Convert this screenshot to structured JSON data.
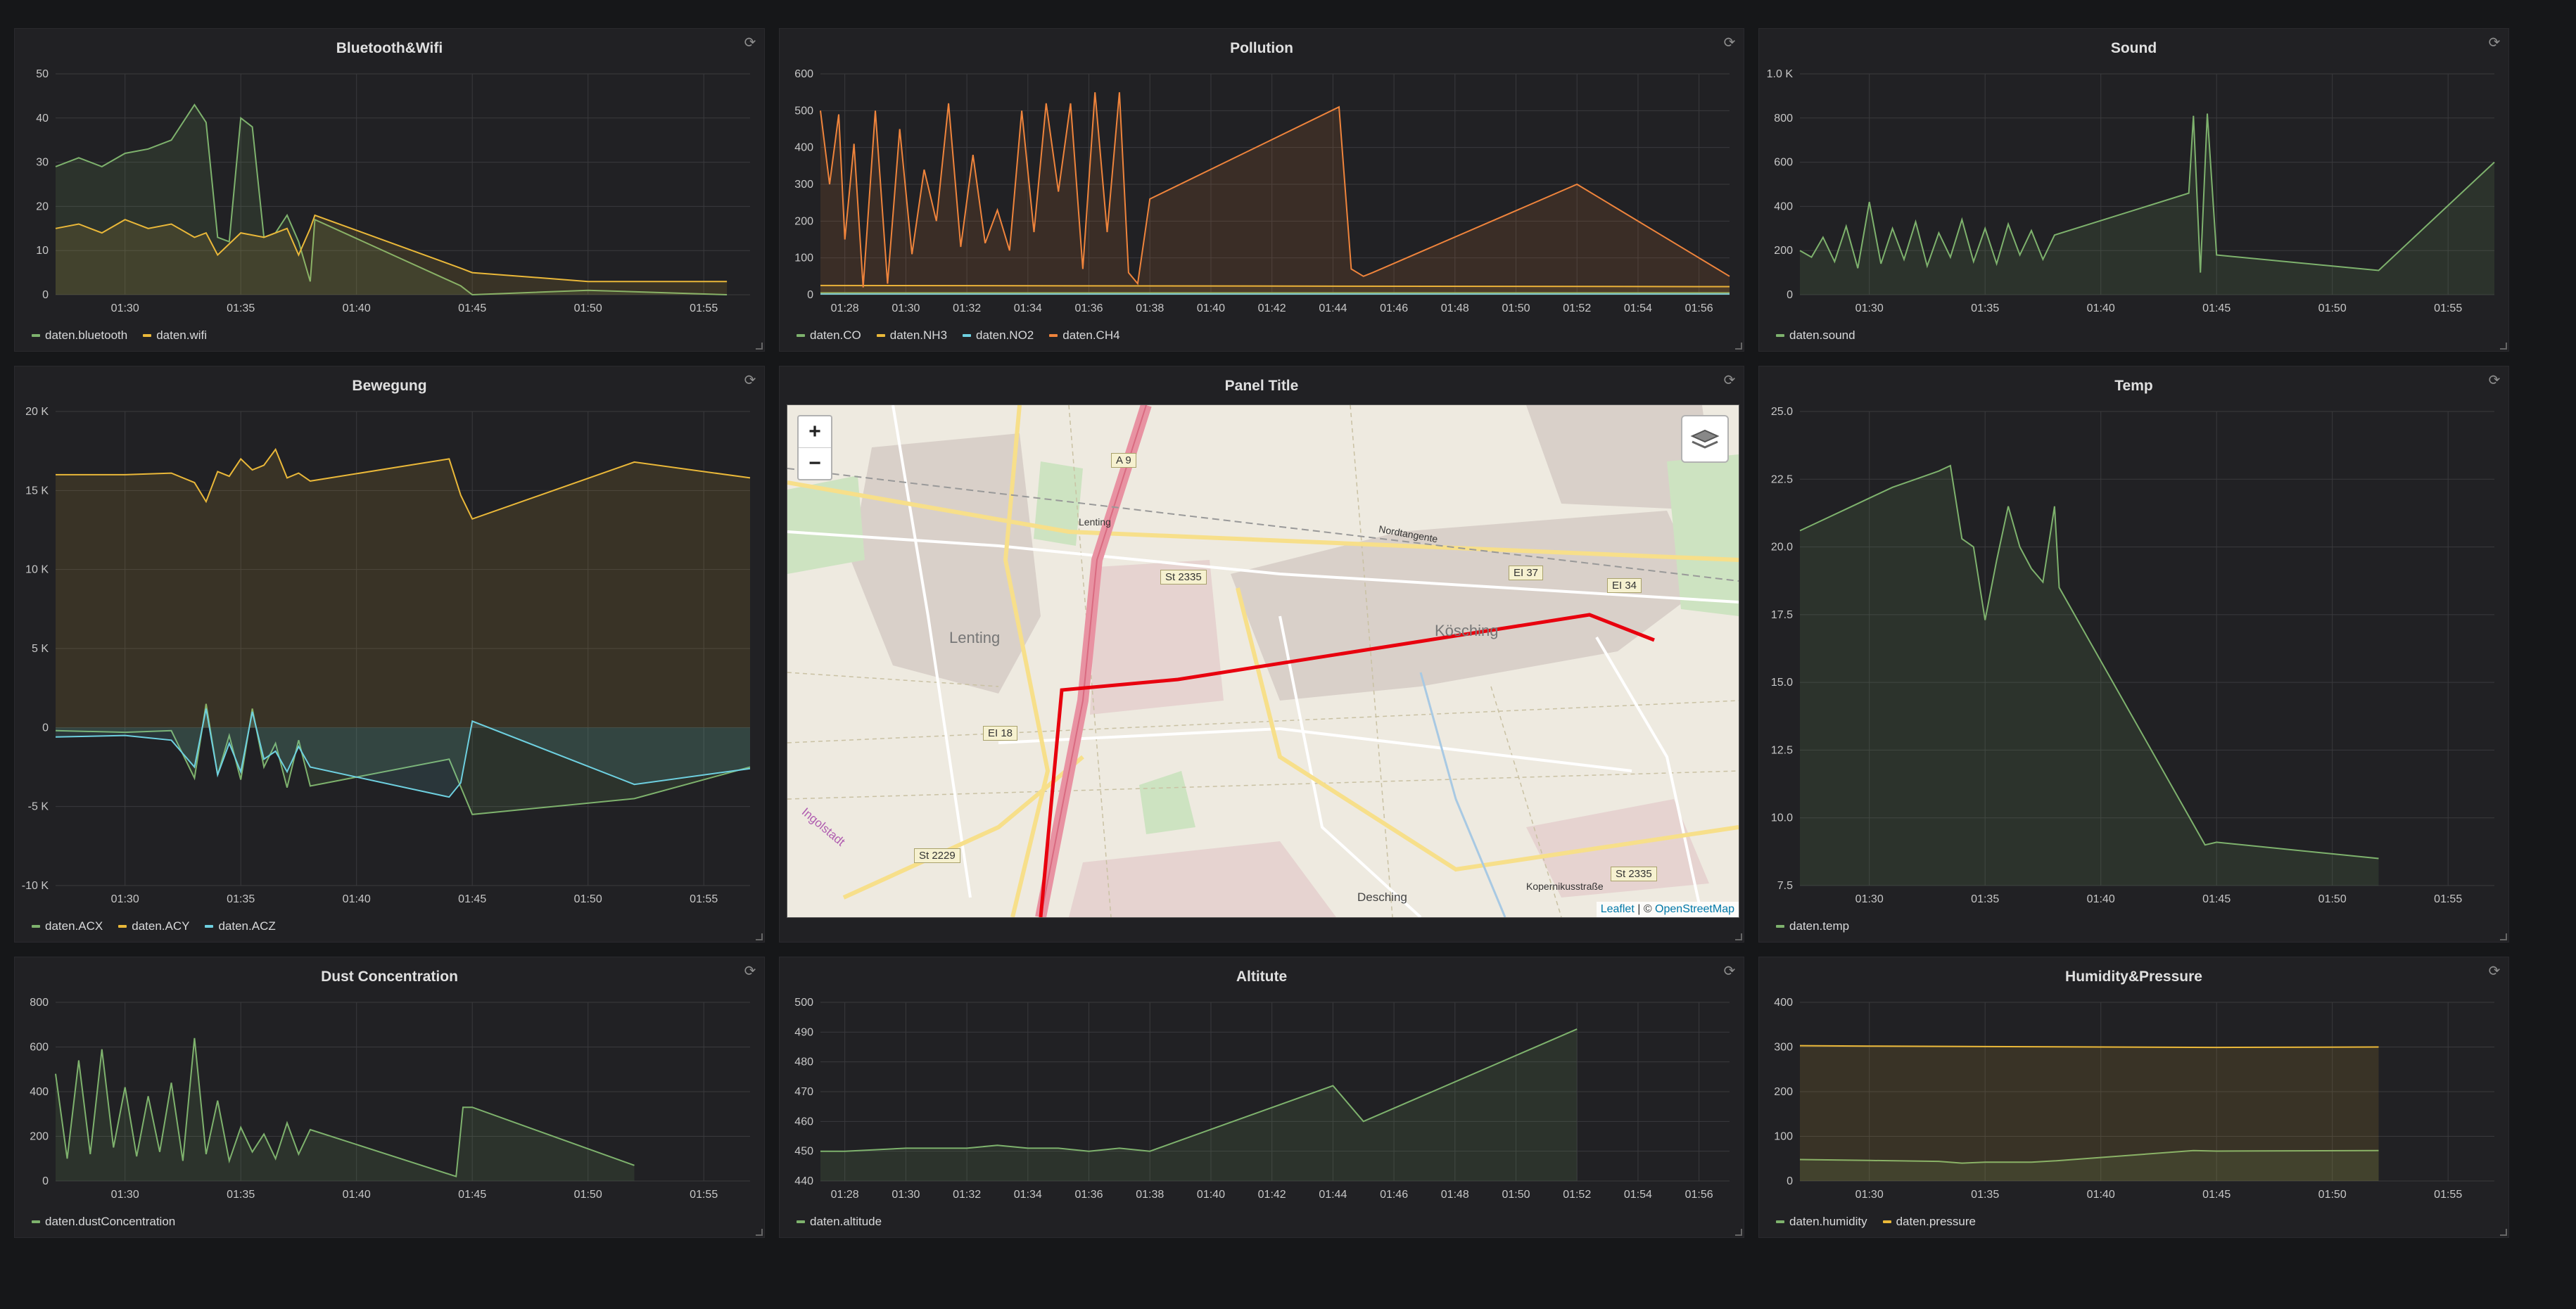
{
  "panels": {
    "bluetooth_wifi": {
      "title": "Bluetooth&Wifi"
    },
    "pollution": {
      "title": "Pollution"
    },
    "sound": {
      "title": "Sound"
    },
    "bewegung": {
      "title": "Bewegung"
    },
    "map": {
      "title": "Panel Title"
    },
    "temp": {
      "title": "Temp"
    },
    "dust": {
      "title": "Dust Concentration"
    },
    "altitude": {
      "title": "Altitute"
    },
    "humidity_pressure": {
      "title": "Humidity&Pressure"
    }
  },
  "map": {
    "zoom_in": "+",
    "zoom_out": "−",
    "attribution_leaflet": "Leaflet",
    "attribution_sep": " | © ",
    "attribution_osm": "OpenStreetMap",
    "places": [
      "Lenting",
      "Kösching",
      "Desching",
      "Ingolstadt"
    ],
    "road_labels": [
      "A 9",
      "St 2335",
      "EI 37",
      "EI 34",
      "EI 18",
      "St 2229",
      "St 2335",
      "Lenting",
      "Nordtangente",
      "Kopernikusstraße"
    ]
  },
  "colors": {
    "green": "#7eb26d",
    "yellow": "#eab839",
    "cyan": "#6ed0e0",
    "orange": "#ef843c",
    "panel": "#212124",
    "grid": "#3a3a3d"
  },
  "chart_data": [
    {
      "id": "bluetooth_wifi",
      "type": "line",
      "y_ticks": [
        "50",
        "40",
        "30",
        "20",
        "10",
        "0"
      ],
      "ylim": [
        0,
        50
      ],
      "x_ticks": [
        "01:30",
        "01:35",
        "01:40",
        "01:45",
        "01:50",
        "01:55"
      ],
      "xlim": [
        "01:27",
        "01:57"
      ],
      "series": [
        {
          "name": "daten.bluetooth",
          "color": "#7eb26d",
          "x": [
            "01:27",
            "01:28",
            "01:29",
            "01:30",
            "01:31",
            "01:32",
            "01:33",
            "01:33.5",
            "01:34",
            "01:34.5",
            "01:35",
            "01:35.5",
            "01:36",
            "01:36.5",
            "01:37",
            "01:37.5",
            "01:38",
            "01:38.2",
            "01:44.5",
            "01:45",
            "01:50",
            "01:56"
          ],
          "values": [
            29,
            31,
            29,
            32,
            33,
            35,
            43,
            39,
            13,
            12,
            40,
            38,
            13,
            14,
            18,
            12,
            3,
            17,
            2,
            0,
            1,
            0
          ]
        },
        {
          "name": "daten.wifi",
          "color": "#eab839",
          "x": [
            "01:27",
            "01:28",
            "01:29",
            "01:30",
            "01:31",
            "01:32",
            "01:33",
            "01:33.5",
            "01:34",
            "01:35",
            "01:36",
            "01:37",
            "01:37.5",
            "01:38",
            "01:38.2",
            "01:44.5",
            "01:45",
            "01:50",
            "01:56"
          ],
          "values": [
            15,
            16,
            14,
            17,
            15,
            16,
            13,
            14,
            9,
            14,
            13,
            15,
            9,
            15,
            18,
            6,
            5,
            3,
            3
          ]
        }
      ]
    },
    {
      "id": "pollution",
      "type": "line",
      "y_ticks": [
        "600",
        "500",
        "400",
        "300",
        "200",
        "100",
        "0"
      ],
      "ylim": [
        0,
        600
      ],
      "x_ticks": [
        "01:28",
        "01:30",
        "01:32",
        "01:34",
        "01:36",
        "01:38",
        "01:40",
        "01:42",
        "01:44",
        "01:46",
        "01:48",
        "01:50",
        "01:52",
        "01:54",
        "01:56"
      ],
      "xlim": [
        "01:27.2",
        "01:57"
      ],
      "series": [
        {
          "name": "daten.CO",
          "color": "#7eb26d",
          "x": [
            "01:27.2",
            "01:57"
          ],
          "values": [
            5,
            5
          ]
        },
        {
          "name": "daten.NH3",
          "color": "#eab839",
          "x": [
            "01:27.2",
            "01:57"
          ],
          "values": [
            25,
            22
          ]
        },
        {
          "name": "daten.NO2",
          "color": "#6ed0e0",
          "x": [
            "01:27.2",
            "01:57"
          ],
          "values": [
            2,
            2
          ]
        },
        {
          "name": "daten.CH4",
          "color": "#ef843c",
          "x": [
            "01:27.2",
            "01:27.5",
            "01:27.8",
            "01:28",
            "01:28.3",
            "01:28.6",
            "01:29",
            "01:29.4",
            "01:29.8",
            "01:30.2",
            "01:30.6",
            "01:31",
            "01:31.4",
            "01:31.8",
            "01:32.2",
            "01:32.6",
            "01:33",
            "01:33.4",
            "01:33.8",
            "01:34.2",
            "01:34.6",
            "01:35",
            "01:35.4",
            "01:35.8",
            "01:36.2",
            "01:36.6",
            "01:37",
            "01:37.3",
            "01:37.6",
            "01:38",
            "01:44.2",
            "01:44.6",
            "01:45",
            "01:45.3",
            "01:52",
            "01:57"
          ],
          "values": [
            500,
            300,
            490,
            150,
            410,
            20,
            500,
            30,
            450,
            110,
            340,
            200,
            520,
            130,
            380,
            140,
            230,
            120,
            500,
            170,
            520,
            280,
            520,
            70,
            550,
            170,
            550,
            60,
            30,
            260,
            510,
            70,
            50,
            60,
            300,
            50
          ]
        }
      ]
    },
    {
      "id": "sound",
      "type": "line",
      "y_ticks": [
        "1.0 K",
        "800",
        "600",
        "400",
        "200",
        "0"
      ],
      "ylim": [
        0,
        1000
      ],
      "x_ticks": [
        "01:30",
        "01:35",
        "01:40",
        "01:45",
        "01:50",
        "01:55"
      ],
      "xlim": [
        "01:27",
        "01:57"
      ],
      "series": [
        {
          "name": "daten.sound",
          "color": "#7eb26d",
          "x": [
            "01:27",
            "01:27.5",
            "01:28",
            "01:28.5",
            "01:29",
            "01:29.5",
            "01:30",
            "01:30.5",
            "01:31",
            "01:31.5",
            "01:32",
            "01:32.5",
            "01:33",
            "01:33.5",
            "01:34",
            "01:34.5",
            "01:35",
            "01:35.5",
            "01:36",
            "01:36.5",
            "01:37",
            "01:37.5",
            "01:38",
            "01:43.8",
            "01:44",
            "01:44.3",
            "01:44.6",
            "01:45",
            "01:52",
            "01:57"
          ],
          "values": [
            200,
            170,
            260,
            150,
            310,
            120,
            420,
            140,
            300,
            160,
            330,
            130,
            280,
            170,
            340,
            150,
            300,
            140,
            320,
            180,
            290,
            160,
            270,
            460,
            810,
            100,
            820,
            180,
            110,
            600
          ]
        }
      ]
    },
    {
      "id": "bewegung",
      "type": "line",
      "y_ticks": [
        "20 K",
        "15 K",
        "10 K",
        "5 K",
        "0",
        "-5 K",
        "-10 K"
      ],
      "ylim": [
        -10000,
        20000
      ],
      "x_ticks": [
        "01:30",
        "01:35",
        "01:40",
        "01:45",
        "01:50",
        "01:55"
      ],
      "xlim": [
        "01:27",
        "01:57"
      ],
      "series": [
        {
          "name": "daten.ACX",
          "color": "#7eb26d",
          "x": [
            "01:27",
            "01:30",
            "01:32",
            "01:33",
            "01:33.5",
            "01:34",
            "01:34.5",
            "01:35",
            "01:35.5",
            "01:36",
            "01:36.5",
            "01:37",
            "01:37.5",
            "01:38",
            "01:44",
            "01:45",
            "01:52",
            "01:57"
          ],
          "values": [
            -200,
            -300,
            -200,
            -3200,
            1500,
            -3000,
            -500,
            -3300,
            1200,
            -2500,
            -1000,
            -3800,
            -800,
            -3700,
            -2000,
            -5500,
            -4500,
            -2500
          ]
        },
        {
          "name": "daten.ACY",
          "color": "#eab839",
          "x": [
            "01:27",
            "01:30",
            "01:32",
            "01:33",
            "01:33.5",
            "01:34",
            "01:34.5",
            "01:35",
            "01:35.5",
            "01:36",
            "01:36.5",
            "01:37",
            "01:37.5",
            "01:38",
            "01:44",
            "01:44.5",
            "01:45",
            "01:52",
            "01:57"
          ],
          "values": [
            16000,
            16000,
            16100,
            15500,
            14300,
            16200,
            15900,
            17000,
            16300,
            16600,
            17600,
            15800,
            16100,
            15600,
            17000,
            14700,
            13200,
            16800,
            15800
          ]
        },
        {
          "name": "daten.ACZ",
          "color": "#6ed0e0",
          "x": [
            "01:27",
            "01:30",
            "01:32",
            "01:33",
            "01:33.5",
            "01:34",
            "01:34.5",
            "01:35",
            "01:35.5",
            "01:36",
            "01:36.5",
            "01:37",
            "01:37.5",
            "01:38",
            "01:44",
            "01:44.5",
            "01:45",
            "01:52",
            "01:57"
          ],
          "values": [
            -600,
            -500,
            -800,
            -2500,
            1200,
            -3000,
            -1000,
            -2800,
            1000,
            -2000,
            -1500,
            -2800,
            -1200,
            -2500,
            -4400,
            -3500,
            400,
            -3600,
            -2600
          ]
        }
      ]
    },
    {
      "id": "temp",
      "type": "line",
      "y_ticks": [
        "25.0",
        "22.5",
        "20.0",
        "17.5",
        "15.0",
        "12.5",
        "10.0",
        "7.5"
      ],
      "ylim": [
        7.5,
        25
      ],
      "x_ticks": [
        "01:30",
        "01:35",
        "01:40",
        "01:45",
        "01:50",
        "01:55"
      ],
      "xlim": [
        "01:27",
        "01:57"
      ],
      "series": [
        {
          "name": "daten.temp",
          "color": "#7eb26d",
          "x": [
            "01:27",
            "01:28",
            "01:29",
            "01:30",
            "01:31",
            "01:32",
            "01:33",
            "01:33.5",
            "01:34",
            "01:34.5",
            "01:35",
            "01:35.5",
            "01:36",
            "01:36.5",
            "01:37",
            "01:37.5",
            "01:38",
            "01:38.2",
            "01:44.5",
            "01:45",
            "01:52"
          ],
          "values": [
            20.6,
            21.0,
            21.4,
            21.8,
            22.2,
            22.5,
            22.8,
            23.0,
            20.3,
            20.0,
            17.3,
            19.5,
            21.5,
            20.0,
            19.2,
            18.7,
            21.5,
            18.5,
            9.0,
            9.1,
            8.5
          ]
        }
      ]
    },
    {
      "id": "dust",
      "type": "line",
      "y_ticks": [
        "800",
        "600",
        "400",
        "200",
        "0"
      ],
      "ylim": [
        0,
        800
      ],
      "x_ticks": [
        "01:30",
        "01:35",
        "01:40",
        "01:45",
        "01:50",
        "01:55"
      ],
      "xlim": [
        "01:27",
        "01:57"
      ],
      "series": [
        {
          "name": "daten.dustConcentration",
          "color": "#7eb26d",
          "x": [
            "01:27",
            "01:27.5",
            "01:28",
            "01:28.5",
            "01:29",
            "01:29.5",
            "01:30",
            "01:30.5",
            "01:31",
            "01:31.5",
            "01:32",
            "01:32.5",
            "01:33",
            "01:33.5",
            "01:34",
            "01:34.5",
            "01:35",
            "01:35.5",
            "01:36",
            "01:36.5",
            "01:37",
            "01:37.5",
            "01:38",
            "01:44.3",
            "01:44.6",
            "01:45",
            "01:52"
          ],
          "values": [
            480,
            100,
            540,
            120,
            590,
            150,
            420,
            110,
            380,
            130,
            440,
            90,
            640,
            120,
            360,
            90,
            240,
            130,
            210,
            100,
            260,
            120,
            230,
            20,
            330,
            330,
            70
          ]
        }
      ]
    },
    {
      "id": "altitude",
      "type": "line",
      "y_ticks": [
        "500",
        "490",
        "480",
        "470",
        "460",
        "450",
        "440"
      ],
      "ylim": [
        440,
        500
      ],
      "x_ticks": [
        "01:28",
        "01:30",
        "01:32",
        "01:34",
        "01:36",
        "01:38",
        "01:40",
        "01:42",
        "01:44",
        "01:46",
        "01:48",
        "01:50",
        "01:52",
        "01:54",
        "01:56"
      ],
      "xlim": [
        "01:27.2",
        "01:57"
      ],
      "series": [
        {
          "name": "daten.altitude",
          "color": "#7eb26d",
          "x": [
            "01:27.2",
            "01:28",
            "01:30",
            "01:32",
            "01:33",
            "01:34",
            "01:35",
            "01:36",
            "01:37",
            "01:38",
            "01:44",
            "01:45",
            "01:52"
          ],
          "values": [
            450,
            450,
            451,
            451,
            452,
            451,
            451,
            450,
            451,
            450,
            472,
            460,
            491
          ]
        }
      ]
    },
    {
      "id": "humidity_pressure",
      "type": "line",
      "y_ticks": [
        "400",
        "300",
        "200",
        "100",
        "0"
      ],
      "ylim": [
        0,
        400
      ],
      "x_ticks": [
        "01:30",
        "01:35",
        "01:40",
        "01:45",
        "01:50",
        "01:55"
      ],
      "xlim": [
        "01:27",
        "01:57"
      ],
      "series": [
        {
          "name": "daten.humidity",
          "color": "#7eb26d",
          "x": [
            "01:27",
            "01:30",
            "01:33",
            "01:34",
            "01:35",
            "01:37",
            "01:38",
            "01:44",
            "01:45",
            "01:52"
          ],
          "values": [
            48,
            46,
            44,
            40,
            42,
            42,
            45,
            68,
            67,
            68
          ]
        },
        {
          "name": "daten.pressure",
          "color": "#eab839",
          "x": [
            "01:27",
            "01:30",
            "01:35",
            "01:40",
            "01:45",
            "01:52"
          ],
          "values": [
            303,
            302,
            301,
            300,
            299,
            300
          ]
        }
      ]
    }
  ]
}
